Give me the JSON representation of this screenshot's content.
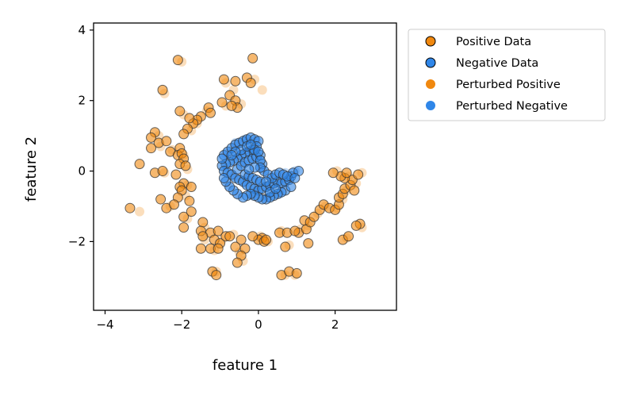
{
  "chart_data": {
    "type": "scatter",
    "xlabel": "feature 1",
    "ylabel": "feature 2",
    "xlim": [
      -4.3,
      3.6
    ],
    "ylim": [
      -3.95,
      4.2
    ],
    "xticks": [
      -4,
      -2,
      0,
      2
    ],
    "yticks": [
      -2,
      0,
      2,
      4
    ],
    "legend_position": "outside-right",
    "grid": false,
    "colors": {
      "positive": "#f0880f",
      "negative": "#2f86e8",
      "edge": "#333333"
    },
    "series": [
      {
        "name": "Positive Data",
        "marker": "outlined-circle",
        "color": "#f0880f",
        "points": [
          [
            -2.1,
            3.15
          ],
          [
            -2.5,
            2.3
          ],
          [
            -0.9,
            2.6
          ],
          [
            -0.6,
            2.55
          ],
          [
            -0.3,
            2.65
          ],
          [
            -0.2,
            2.5
          ],
          [
            -0.15,
            3.2
          ],
          [
            -0.75,
            2.15
          ],
          [
            -0.6,
            2.0
          ],
          [
            -0.55,
            1.8
          ],
          [
            -0.7,
            1.85
          ],
          [
            -0.95,
            1.95
          ],
          [
            -1.3,
            1.8
          ],
          [
            -1.25,
            1.65
          ],
          [
            -1.5,
            1.55
          ],
          [
            -1.6,
            1.45
          ],
          [
            -1.7,
            1.35
          ],
          [
            -1.8,
            1.5
          ],
          [
            -2.05,
            1.7
          ],
          [
            -1.85,
            1.2
          ],
          [
            -1.95,
            1.05
          ],
          [
            -2.7,
            1.1
          ],
          [
            -2.8,
            0.95
          ],
          [
            -2.6,
            0.8
          ],
          [
            -2.4,
            0.85
          ],
          [
            -2.8,
            0.65
          ],
          [
            -2.3,
            0.55
          ],
          [
            -2.05,
            0.65
          ],
          [
            -2.1,
            0.45
          ],
          [
            -2.0,
            0.5
          ],
          [
            -1.95,
            0.35
          ],
          [
            -2.05,
            0.2
          ],
          [
            -1.9,
            0.15
          ],
          [
            -3.1,
            0.2
          ],
          [
            -2.7,
            -0.05
          ],
          [
            -2.5,
            0.0
          ],
          [
            -2.15,
            -0.1
          ],
          [
            -1.95,
            -0.35
          ],
          [
            -2.05,
            -0.45
          ],
          [
            -2.0,
            -0.55
          ],
          [
            -1.75,
            -0.45
          ],
          [
            -2.55,
            -0.8
          ],
          [
            -2.1,
            -0.75
          ],
          [
            -1.8,
            -0.85
          ],
          [
            -2.4,
            -1.05
          ],
          [
            -2.2,
            -0.95
          ],
          [
            -1.95,
            -1.3
          ],
          [
            -1.75,
            -1.15
          ],
          [
            -3.35,
            -1.05
          ],
          [
            -1.45,
            -1.45
          ],
          [
            -1.5,
            -1.7
          ],
          [
            -1.95,
            -1.6
          ],
          [
            -1.25,
            -1.75
          ],
          [
            -1.05,
            -1.7
          ],
          [
            -1.45,
            -1.85
          ],
          [
            -1.15,
            -1.95
          ],
          [
            -1.0,
            -2.05
          ],
          [
            -0.85,
            -1.85
          ],
          [
            -0.75,
            -1.85
          ],
          [
            -0.45,
            -1.95
          ],
          [
            -1.25,
            -2.2
          ],
          [
            -1.05,
            -2.2
          ],
          [
            -1.5,
            -2.2
          ],
          [
            -0.6,
            -2.15
          ],
          [
            -0.35,
            -2.2
          ],
          [
            -0.45,
            -2.4
          ],
          [
            -0.55,
            -2.6
          ],
          [
            -1.2,
            -2.85
          ],
          [
            -1.1,
            -2.95
          ],
          [
            0.1,
            -1.9
          ],
          [
            0.0,
            -1.95
          ],
          [
            0.15,
            -2.0
          ],
          [
            -0.15,
            -1.85
          ],
          [
            0.2,
            -1.95
          ],
          [
            0.55,
            -1.75
          ],
          [
            0.75,
            -1.75
          ],
          [
            1.05,
            -1.75
          ],
          [
            0.95,
            -1.7
          ],
          [
            0.7,
            -2.15
          ],
          [
            1.25,
            -1.65
          ],
          [
            1.3,
            -2.05
          ],
          [
            1.2,
            -1.4
          ],
          [
            1.35,
            -1.45
          ],
          [
            1.45,
            -1.3
          ],
          [
            1.6,
            -1.1
          ],
          [
            1.7,
            -0.95
          ],
          [
            1.85,
            -1.05
          ],
          [
            2.0,
            -1.1
          ],
          [
            2.1,
            -0.95
          ],
          [
            2.1,
            -0.75
          ],
          [
            2.2,
            -0.65
          ],
          [
            2.25,
            -0.5
          ],
          [
            2.4,
            -0.4
          ],
          [
            2.5,
            -0.55
          ],
          [
            2.45,
            -0.25
          ],
          [
            2.25,
            -0.2
          ],
          [
            2.15,
            -0.15
          ],
          [
            1.95,
            -0.05
          ],
          [
            2.3,
            -0.05
          ],
          [
            2.6,
            -0.1
          ],
          [
            2.2,
            -1.95
          ],
          [
            2.35,
            -1.85
          ],
          [
            2.65,
            -1.5
          ],
          [
            2.55,
            -1.55
          ],
          [
            0.6,
            -2.95
          ],
          [
            0.8,
            -2.85
          ],
          [
            1.0,
            -2.9
          ]
        ]
      },
      {
        "name": "Negative Data",
        "marker": "outlined-circle",
        "color": "#2f86e8",
        "points": [
          [
            -0.9,
            0.45
          ],
          [
            -0.8,
            0.55
          ],
          [
            -0.7,
            0.65
          ],
          [
            -0.6,
            0.75
          ],
          [
            -0.5,
            0.8
          ],
          [
            -0.4,
            0.85
          ],
          [
            -0.3,
            0.9
          ],
          [
            -0.2,
            0.95
          ],
          [
            -0.1,
            0.9
          ],
          [
            0.0,
            0.85
          ],
          [
            -0.05,
            0.7
          ],
          [
            -0.15,
            0.6
          ],
          [
            -0.25,
            0.55
          ],
          [
            -0.35,
            0.5
          ],
          [
            -0.45,
            0.45
          ],
          [
            -0.55,
            0.35
          ],
          [
            -0.65,
            0.3
          ],
          [
            -0.75,
            0.25
          ],
          [
            -0.85,
            0.2
          ],
          [
            -0.95,
            0.15
          ],
          [
            -0.9,
            0.0
          ],
          [
            -0.8,
            -0.05
          ],
          [
            -0.7,
            -0.1
          ],
          [
            -0.6,
            -0.2
          ],
          [
            -0.5,
            -0.25
          ],
          [
            -0.4,
            -0.3
          ],
          [
            -0.3,
            -0.4
          ],
          [
            -0.2,
            -0.45
          ],
          [
            -0.1,
            -0.5
          ],
          [
            0.0,
            -0.55
          ],
          [
            0.1,
            -0.5
          ],
          [
            0.2,
            -0.45
          ],
          [
            0.3,
            -0.4
          ],
          [
            0.4,
            -0.35
          ],
          [
            0.5,
            -0.3
          ],
          [
            0.6,
            -0.35
          ],
          [
            0.7,
            -0.3
          ],
          [
            0.8,
            -0.25
          ],
          [
            0.85,
            -0.15
          ],
          [
            0.9,
            -0.05
          ],
          [
            1.05,
            0.0
          ],
          [
            0.7,
            -0.55
          ],
          [
            0.6,
            -0.6
          ],
          [
            0.5,
            -0.65
          ],
          [
            0.4,
            -0.7
          ],
          [
            0.3,
            -0.75
          ],
          [
            0.2,
            -0.8
          ],
          [
            0.1,
            -0.8
          ],
          [
            0.0,
            -0.75
          ],
          [
            -0.1,
            -0.7
          ],
          [
            -0.2,
            -0.65
          ],
          [
            -0.3,
            -0.7
          ],
          [
            -0.4,
            -0.75
          ],
          [
            -0.55,
            -0.65
          ],
          [
            -0.65,
            -0.55
          ],
          [
            -0.75,
            -0.45
          ],
          [
            -0.85,
            -0.3
          ],
          [
            -0.9,
            -0.2
          ],
          [
            -0.55,
            0.05
          ],
          [
            -0.45,
            0.15
          ],
          [
            -0.35,
            0.25
          ],
          [
            -0.25,
            0.3
          ],
          [
            -0.15,
            0.35
          ],
          [
            -0.05,
            0.4
          ],
          [
            0.05,
            0.45
          ],
          [
            0.1,
            0.2
          ],
          [
            0.15,
            0.0
          ],
          [
            0.25,
            -0.1
          ],
          [
            0.35,
            -0.2
          ],
          [
            0.45,
            -0.1
          ],
          [
            0.55,
            -0.05
          ],
          [
            0.65,
            -0.1
          ],
          [
            0.75,
            -0.15
          ],
          [
            -0.35,
            -0.1
          ],
          [
            -0.25,
            -0.15
          ],
          [
            -0.15,
            -0.2
          ],
          [
            -0.05,
            -0.25
          ],
          [
            0.05,
            -0.3
          ],
          [
            -0.45,
            0.6
          ],
          [
            -0.3,
            0.7
          ],
          [
            -0.1,
            0.6
          ],
          [
            0.0,
            0.55
          ],
          [
            0.05,
            0.3
          ],
          [
            0.05,
            0.1
          ],
          [
            0.2,
            -0.3
          ],
          [
            -0.6,
            0.55
          ],
          [
            -0.7,
            0.45
          ],
          [
            -0.95,
            0.35
          ],
          [
            0.95,
            -0.2
          ],
          [
            0.85,
            -0.45
          ],
          [
            0.3,
            -0.6
          ],
          [
            0.45,
            -0.5
          ],
          [
            -0.2,
            0.75
          ],
          [
            -0.1,
            0.1
          ],
          [
            -0.25,
            0.05
          ]
        ]
      },
      {
        "name": "Perturbed Positive",
        "marker": "filled-circle",
        "color": "#f0880f",
        "points": [
          [
            -2.0,
            3.1
          ],
          [
            -2.45,
            2.2
          ],
          [
            -0.85,
            2.5
          ],
          [
            -0.1,
            2.6
          ],
          [
            0.1,
            2.3
          ],
          [
            -0.65,
            2.3
          ],
          [
            -0.45,
            1.9
          ],
          [
            -0.85,
            1.85
          ],
          [
            -1.35,
            1.7
          ],
          [
            -1.6,
            1.35
          ],
          [
            -1.95,
            1.6
          ],
          [
            -1.75,
            1.15
          ],
          [
            -2.6,
            1.0
          ],
          [
            -2.55,
            0.7
          ],
          [
            -2.25,
            0.6
          ],
          [
            -1.95,
            0.45
          ],
          [
            -1.85,
            0.05
          ],
          [
            -2.45,
            -0.05
          ],
          [
            -1.85,
            -0.4
          ],
          [
            -1.9,
            -0.7
          ],
          [
            -2.3,
            -1.0
          ],
          [
            -1.85,
            -1.35
          ],
          [
            -3.1,
            -1.15
          ],
          [
            -1.4,
            -1.6
          ],
          [
            -1.4,
            -1.95
          ],
          [
            -0.95,
            -1.95
          ],
          [
            -0.65,
            -1.8
          ],
          [
            -1.15,
            -2.25
          ],
          [
            -0.5,
            -2.3
          ],
          [
            -0.4,
            -2.55
          ],
          [
            -1.1,
            -2.85
          ],
          [
            0.05,
            -1.85
          ],
          [
            0.25,
            -2.0
          ],
          [
            0.6,
            -1.7
          ],
          [
            1.1,
            -1.65
          ],
          [
            1.3,
            -1.55
          ],
          [
            1.55,
            -1.2
          ],
          [
            1.75,
            -1.0
          ],
          [
            2.05,
            -1.05
          ],
          [
            2.2,
            -0.8
          ],
          [
            2.3,
            -0.55
          ],
          [
            2.55,
            -0.35
          ],
          [
            2.35,
            -0.15
          ],
          [
            2.05,
            0.0
          ],
          [
            2.7,
            -0.05
          ],
          [
            2.3,
            -1.9
          ],
          [
            2.7,
            -1.6
          ],
          [
            0.7,
            -2.95
          ],
          [
            0.95,
            -2.95
          ],
          [
            0.8,
            -2.1
          ]
        ]
      },
      {
        "name": "Perturbed Negative",
        "marker": "filled-circle",
        "color": "#2f86e8",
        "points": [
          [
            -0.85,
            0.5
          ],
          [
            -0.6,
            0.8
          ],
          [
            -0.35,
            0.9
          ],
          [
            -0.05,
            0.85
          ],
          [
            -0.2,
            0.55
          ],
          [
            -0.5,
            0.4
          ],
          [
            -0.8,
            0.1
          ],
          [
            -0.65,
            -0.15
          ],
          [
            -0.35,
            -0.35
          ],
          [
            -0.05,
            -0.55
          ],
          [
            0.25,
            -0.5
          ],
          [
            0.55,
            -0.35
          ],
          [
            0.8,
            -0.2
          ],
          [
            0.95,
            0.0
          ],
          [
            0.55,
            -0.65
          ],
          [
            0.25,
            -0.75
          ],
          [
            -0.15,
            -0.7
          ],
          [
            -0.5,
            -0.7
          ],
          [
            -0.8,
            -0.4
          ],
          [
            -0.4,
            0.2
          ],
          [
            -0.1,
            0.35
          ],
          [
            0.1,
            0.05
          ],
          [
            0.4,
            -0.15
          ],
          [
            0.7,
            -0.05
          ],
          [
            -0.3,
            -0.2
          ],
          [
            0.0,
            -0.3
          ]
        ]
      }
    ]
  }
}
